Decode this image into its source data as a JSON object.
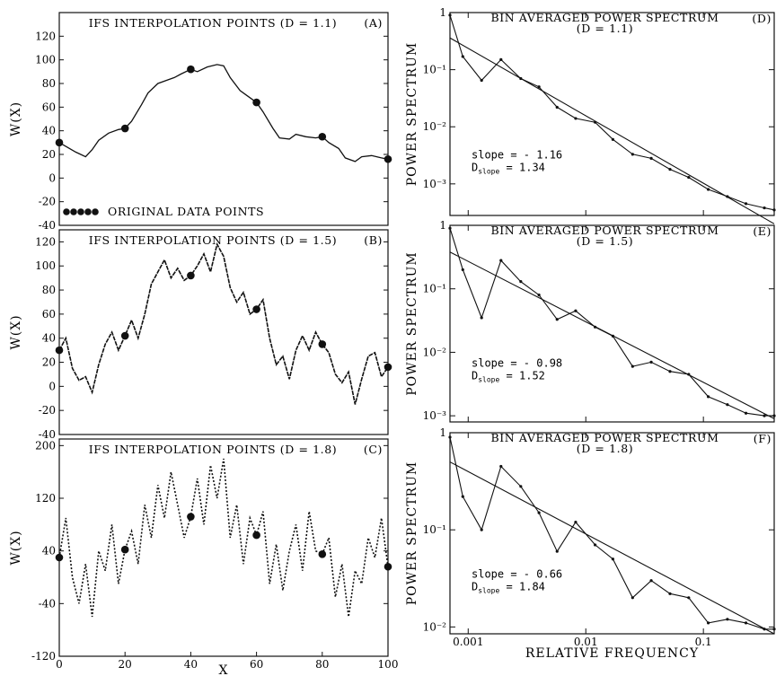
{
  "chart_data": [
    {
      "id": "A",
      "type": "line",
      "panel_label": "(A)",
      "title": "IFS INTERPOLATION POINTS (D = 1.1)",
      "ylabel": "W(X)",
      "xlabel": "",
      "xlim": [
        0,
        100
      ],
      "ylim": [
        -40,
        140
      ],
      "yticks": [
        -40,
        -20,
        0,
        20,
        40,
        60,
        80,
        100,
        120
      ],
      "xticks": [],
      "legend": "ORIGINAL DATA POINTS",
      "interp_points": {
        "x": [
          0,
          20,
          40,
          60,
          80,
          100
        ],
        "y": [
          30,
          42,
          92,
          64,
          35,
          16
        ]
      },
      "curve": {
        "x": [
          0,
          5,
          8,
          10,
          12,
          15,
          18,
          20,
          22,
          25,
          27,
          30,
          33,
          35,
          37,
          40,
          42,
          45,
          48,
          50,
          52,
          55,
          57,
          60,
          62,
          65,
          67,
          70,
          72,
          75,
          78,
          80,
          82,
          85,
          87,
          90,
          92,
          95,
          98,
          100
        ],
        "y": [
          30,
          22,
          18,
          24,
          32,
          38,
          41,
          42,
          48,
          62,
          72,
          80,
          83,
          85,
          88,
          92,
          90,
          94,
          96,
          95,
          85,
          74,
          70,
          64,
          56,
          42,
          34,
          33,
          37,
          35,
          34,
          35,
          30,
          25,
          17,
          14,
          18,
          19,
          17,
          16
        ]
      }
    },
    {
      "id": "B",
      "type": "line",
      "panel_label": "(B)",
      "title": "IFS INTERPOLATION POINTS (D = 1.5)",
      "ylabel": "W(X)",
      "xlabel": "",
      "xlim": [
        0,
        100
      ],
      "ylim": [
        -40,
        130
      ],
      "yticks": [
        -40,
        -20,
        0,
        20,
        40,
        60,
        80,
        100,
        120
      ],
      "xticks": [],
      "interp_points": {
        "x": [
          0,
          20,
          40,
          60,
          80,
          100
        ],
        "y": [
          30,
          42,
          92,
          64,
          35,
          16
        ]
      },
      "curve": {
        "x": [
          0,
          2,
          4,
          6,
          8,
          10,
          12,
          14,
          16,
          18,
          20,
          22,
          24,
          26,
          28,
          30,
          32,
          34,
          36,
          38,
          40,
          42,
          44,
          46,
          48,
          50,
          52,
          54,
          56,
          58,
          60,
          62,
          64,
          66,
          68,
          70,
          72,
          74,
          76,
          78,
          80,
          82,
          84,
          86,
          88,
          90,
          92,
          94,
          96,
          98,
          100
        ],
        "y": [
          30,
          40,
          15,
          5,
          8,
          -5,
          18,
          35,
          45,
          30,
          42,
          55,
          40,
          60,
          85,
          95,
          105,
          90,
          98,
          88,
          92,
          100,
          110,
          95,
          118,
          108,
          82,
          70,
          78,
          60,
          64,
          72,
          40,
          18,
          25,
          6,
          30,
          42,
          30,
          45,
          35,
          28,
          10,
          3,
          12,
          -15,
          6,
          25,
          28,
          8,
          16
        ]
      }
    },
    {
      "id": "C",
      "type": "line",
      "panel_label": "(C)",
      "title": "IFS INTERPOLATION POINTS (D = 1.8)",
      "ylabel": "W(X)",
      "xlabel": "X",
      "xlim": [
        0,
        100
      ],
      "ylim": [
        -120,
        210
      ],
      "yticks": [
        -120,
        -40,
        40,
        120,
        200
      ],
      "xticks": [
        0,
        20,
        40,
        60,
        80,
        100
      ],
      "interp_points": {
        "x": [
          0,
          20,
          40,
          60,
          80,
          100
        ],
        "y": [
          30,
          42,
          92,
          64,
          35,
          16
        ]
      },
      "curve": {
        "x": [
          0,
          2,
          4,
          6,
          8,
          10,
          12,
          14,
          16,
          18,
          20,
          22,
          24,
          26,
          28,
          30,
          32,
          34,
          36,
          38,
          40,
          42,
          44,
          46,
          48,
          50,
          52,
          54,
          56,
          58,
          60,
          62,
          64,
          66,
          68,
          70,
          72,
          74,
          76,
          78,
          80,
          82,
          84,
          86,
          88,
          90,
          92,
          94,
          96,
          98,
          100
        ],
        "y": [
          30,
          90,
          0,
          -40,
          20,
          -60,
          40,
          10,
          80,
          -10,
          42,
          70,
          20,
          110,
          60,
          140,
          90,
          160,
          110,
          60,
          92,
          150,
          80,
          170,
          120,
          180,
          60,
          110,
          20,
          90,
          64,
          100,
          -10,
          50,
          -20,
          40,
          80,
          10,
          100,
          40,
          35,
          60,
          -30,
          20,
          -60,
          10,
          -10,
          60,
          30,
          90,
          16
        ]
      }
    },
    {
      "id": "D",
      "type": "line",
      "scale": "log-log",
      "panel_label": "(D)",
      "title": "BIN AVERAGED POWER SPECTRUM",
      "subtitle": "(D = 1.1)",
      "ylabel": "POWER SPECTRUM",
      "xlabel": "",
      "xlim": [
        0.0007,
        0.4
      ],
      "ylim": [
        0.00028,
        1
      ],
      "ytick_labels": [
        "1",
        "10⁻¹",
        "10⁻²",
        "10⁻³"
      ],
      "ytick_values": [
        1,
        0.1,
        0.01,
        0.001
      ],
      "annotation": [
        "slope = - 1.16",
        "D = 1.34"
      ],
      "annotation_sub": "slope",
      "spectrum": {
        "x": [
          0.0007,
          0.0009,
          0.0013,
          0.0019,
          0.0028,
          0.004,
          0.0057,
          0.0082,
          0.012,
          0.017,
          0.025,
          0.036,
          0.052,
          0.075,
          0.11,
          0.16,
          0.23,
          0.33,
          0.4
        ],
        "y": [
          0.9,
          0.17,
          0.065,
          0.15,
          0.07,
          0.05,
          0.022,
          0.014,
          0.012,
          0.006,
          0.0033,
          0.0028,
          0.0018,
          0.0013,
          0.0008,
          0.0006,
          0.00045,
          0.00038,
          0.00035
        ]
      },
      "fit": {
        "x": [
          0.0007,
          0.4
        ],
        "y": [
          0.36,
          0.0002
        ]
      }
    },
    {
      "id": "E",
      "type": "line",
      "scale": "log-log",
      "panel_label": "(E)",
      "title": "BIN AVERAGED POWER SPECTRUM",
      "subtitle": "(D = 1.5)",
      "ylabel": "POWER SPECTRUM",
      "xlabel": "",
      "xlim": [
        0.0007,
        0.4
      ],
      "ylim": [
        0.0008,
        1
      ],
      "ytick_labels": [
        "1",
        "10⁻¹",
        "10⁻²",
        "10⁻³"
      ],
      "ytick_values": [
        1,
        0.1,
        0.01,
        0.001
      ],
      "annotation": [
        "slope = - 0.98",
        "D = 1.52"
      ],
      "annotation_sub": "slope",
      "spectrum": {
        "x": [
          0.0007,
          0.0009,
          0.0013,
          0.0019,
          0.0028,
          0.004,
          0.0057,
          0.0082,
          0.012,
          0.017,
          0.025,
          0.036,
          0.052,
          0.075,
          0.11,
          0.16,
          0.23,
          0.33,
          0.4
        ],
        "y": [
          0.9,
          0.2,
          0.035,
          0.28,
          0.13,
          0.08,
          0.033,
          0.045,
          0.025,
          0.018,
          0.006,
          0.007,
          0.005,
          0.0045,
          0.002,
          0.0015,
          0.0011,
          0.001,
          0.001
        ]
      },
      "fit": {
        "x": [
          0.0007,
          0.4
        ],
        "y": [
          0.38,
          0.0009
        ]
      }
    },
    {
      "id": "F",
      "type": "line",
      "scale": "log-log",
      "panel_label": "(F)",
      "title": "BIN AVERAGED POWER SPECTRUM",
      "subtitle": "(D = 1.8)",
      "ylabel": "POWER SPECTRUM",
      "xlabel": "RELATIVE FREQUENCY",
      "xlim": [
        0.0007,
        0.4
      ],
      "ylim": [
        0.0085,
        1
      ],
      "ytick_labels": [
        "1",
        "10⁻¹",
        "10⁻²"
      ],
      "ytick_values": [
        1,
        0.1,
        0.01
      ],
      "xtick_labels": [
        "0.001",
        "0.01",
        "0.1"
      ],
      "xtick_values": [
        0.001,
        0.01,
        0.1
      ],
      "annotation": [
        "slope = - 0.66",
        "D = 1.84"
      ],
      "annotation_sub": "slope",
      "spectrum": {
        "x": [
          0.0007,
          0.0009,
          0.0013,
          0.0019,
          0.0028,
          0.004,
          0.0057,
          0.0082,
          0.012,
          0.017,
          0.025,
          0.036,
          0.052,
          0.075,
          0.11,
          0.16,
          0.23,
          0.33,
          0.4
        ],
        "y": [
          0.9,
          0.22,
          0.1,
          0.45,
          0.28,
          0.15,
          0.06,
          0.12,
          0.07,
          0.05,
          0.02,
          0.03,
          0.022,
          0.02,
          0.011,
          0.012,
          0.011,
          0.0095,
          0.0095
        ]
      },
      "fit": {
        "x": [
          0.0007,
          0.4
        ],
        "y": [
          0.5,
          0.0085
        ]
      }
    }
  ]
}
